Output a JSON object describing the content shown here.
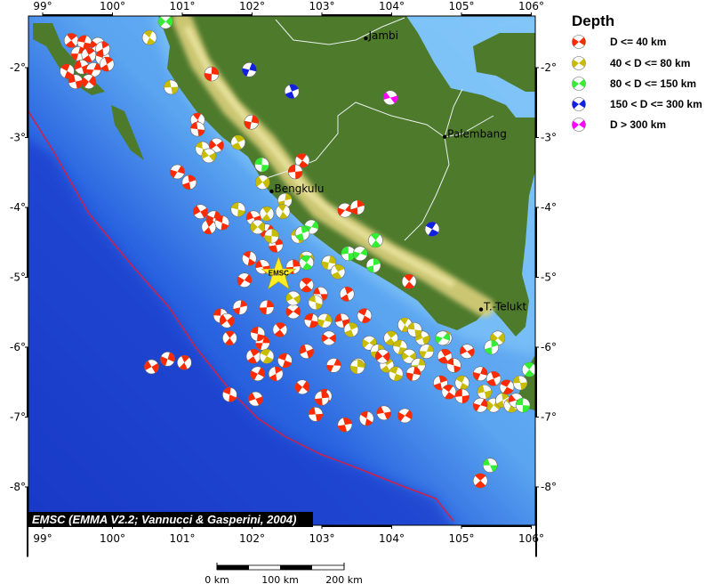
{
  "map": {
    "lon_ticks": [
      "99°",
      "100°",
      "101°",
      "102°",
      "103°",
      "104°",
      "105°",
      "106°"
    ],
    "lon_values": [
      99,
      100,
      101,
      102,
      103,
      104,
      105,
      106
    ],
    "lat_ticks": [
      "-2°",
      "-3°",
      "-4°",
      "-5°",
      "-6°",
      "-7°",
      "-8°"
    ],
    "lat_values": [
      -2,
      -3,
      -4,
      -5,
      -6,
      -7,
      -8
    ],
    "colors": {
      "ocean_shallow": "#6cb4f4",
      "ocean_deep": "#1438c8",
      "land": "#4e7a2c",
      "mountain": "#d9cf7a",
      "trench": "#d0204a",
      "river": "#e8f0f0"
    },
    "cities": [
      {
        "name": "Jambi",
        "lon": 103.63,
        "lat": -1.58
      },
      {
        "name": "Palembang",
        "lon": 104.76,
        "lat": -2.99
      },
      {
        "name": "Bengkulu",
        "lon": 102.28,
        "lat": -3.77
      },
      {
        "name": "T.-Telukt",
        "lon": 105.28,
        "lat": -5.46
      }
    ],
    "epicenter": {
      "label": "EMSC",
      "lon": 102.38,
      "lat": -4.96,
      "color": "#ffee22"
    },
    "attribution": "EMSC (EMMA V2.2; Vannucci & Gasperini, 2004)"
  },
  "legend": {
    "title": "Depth",
    "items": [
      {
        "label": "D <= 40 km",
        "color": "#ff2a00",
        "icon": "beachball-icon"
      },
      {
        "label": "40 < D <= 80 km",
        "color": "#c8bc00",
        "icon": "beachball-icon"
      },
      {
        "label": "80 < D <= 150 km",
        "color": "#33ee33",
        "icon": "beachball-icon"
      },
      {
        "label": "150 < D <= 300 km",
        "color": "#1020e0",
        "icon": "beachball-icon"
      },
      {
        "label": "D > 300 km",
        "color": "#ff00ff",
        "icon": "beachball-icon"
      }
    ]
  },
  "scale_bar": {
    "labels": [
      "0 km",
      "100 km",
      "200 km"
    ]
  },
  "events": [
    [
      99.41,
      -1.61,
      0
    ],
    [
      99.6,
      -1.64,
      0
    ],
    [
      99.79,
      -1.67,
      0
    ],
    [
      99.51,
      -1.8,
      0
    ],
    [
      99.66,
      -1.82,
      0
    ],
    [
      99.86,
      -1.86,
      0
    ],
    [
      99.56,
      -1.99,
      0
    ],
    [
      99.73,
      -2.03,
      0
    ],
    [
      99.92,
      -1.95,
      0
    ],
    [
      99.35,
      -2.05,
      0
    ],
    [
      99.47,
      -2.2,
      0
    ],
    [
      99.66,
      -2.2,
      0
    ],
    [
      99.86,
      -1.73,
      0
    ],
    [
      100.53,
      -1.57,
      1
    ],
    [
      100.84,
      -2.28,
      1
    ],
    [
      100.76,
      -1.34,
      2
    ],
    [
      101.42,
      -2.09,
      0
    ],
    [
      101.22,
      -2.75,
      0
    ],
    [
      101.22,
      -2.88,
      0
    ],
    [
      101.49,
      -3.11,
      0
    ],
    [
      101.99,
      -2.78,
      0
    ],
    [
      101.8,
      -3.07,
      1
    ],
    [
      101.29,
      -3.16,
      1
    ],
    [
      101.38,
      -3.26,
      1
    ],
    [
      101.96,
      -2.03,
      3
    ],
    [
      102.57,
      -2.34,
      3
    ],
    [
      104.58,
      -4.31,
      3
    ],
    [
      103.98,
      -2.43,
      4
    ],
    [
      100.93,
      -3.49,
      0
    ],
    [
      101.1,
      -3.64,
      0
    ],
    [
      102.72,
      -3.33,
      0
    ],
    [
      102.62,
      -3.49,
      0
    ],
    [
      103.33,
      -4.04,
      0
    ],
    [
      103.51,
      -4.0,
      0
    ],
    [
      104.25,
      -5.06,
      0
    ],
    [
      102.14,
      -3.39,
      2
    ],
    [
      102.15,
      -3.64,
      1
    ],
    [
      102.47,
      -3.9,
      1
    ],
    [
      102.21,
      -4.09,
      1
    ],
    [
      101.8,
      -4.03,
      1
    ],
    [
      101.26,
      -4.06,
      0
    ],
    [
      101.45,
      -4.15,
      0
    ],
    [
      101.38,
      -4.28,
      0
    ],
    [
      101.57,
      -4.22,
      0
    ],
    [
      102.02,
      -4.15,
      0
    ],
    [
      102.21,
      -4.34,
      0
    ],
    [
      102.34,
      -4.54,
      0
    ],
    [
      101.96,
      -4.73,
      0
    ],
    [
      102.15,
      -4.85,
      0
    ],
    [
      101.89,
      -5.04,
      0
    ],
    [
      102.59,
      -4.85,
      0
    ],
    [
      102.78,
      -5.11,
      0
    ],
    [
      102.98,
      -5.24,
      0
    ],
    [
      102.59,
      -5.49,
      0
    ],
    [
      102.21,
      -5.43,
      0
    ],
    [
      102.4,
      -5.75,
      0
    ],
    [
      102.85,
      -5.62,
      0
    ],
    [
      103.1,
      -5.87,
      0
    ],
    [
      102.15,
      -5.94,
      0
    ],
    [
      102.02,
      -6.13,
      0
    ],
    [
      102.47,
      -6.19,
      0
    ],
    [
      102.78,
      -6.06,
      0
    ],
    [
      103.17,
      -6.26,
      0
    ],
    [
      103.36,
      -5.24,
      0
    ],
    [
      103.61,
      -5.55,
      0
    ],
    [
      103.29,
      -5.62,
      0
    ],
    [
      102.72,
      -6.57,
      0
    ],
    [
      102.34,
      -6.38,
      0
    ],
    [
      103.04,
      -6.7,
      0
    ],
    [
      102.91,
      -6.96,
      0
    ],
    [
      102.08,
      -4.28,
      1
    ],
    [
      102.28,
      -4.41,
      1
    ],
    [
      102.44,
      -4.06,
      1
    ],
    [
      102.66,
      -4.41,
      1
    ],
    [
      102.78,
      -4.73,
      1
    ],
    [
      103.1,
      -4.79,
      1
    ],
    [
      103.23,
      -4.92,
      1
    ],
    [
      102.91,
      -5.36,
      1
    ],
    [
      102.59,
      -5.3,
      1
    ],
    [
      103.04,
      -5.62,
      1
    ],
    [
      103.42,
      -5.75,
      1
    ],
    [
      102.21,
      -6.13,
      1
    ],
    [
      103.52,
      -6.26,
      1
    ],
    [
      102.85,
      -4.28,
      2
    ],
    [
      102.72,
      -4.37,
      2
    ],
    [
      102.78,
      -4.79,
      2
    ],
    [
      103.38,
      -4.66,
      2
    ],
    [
      103.55,
      -4.66,
      2
    ],
    [
      103.74,
      -4.83,
      2
    ],
    [
      103.77,
      -4.47,
      2
    ],
    [
      101.55,
      -5.55,
      0
    ],
    [
      101.64,
      -5.62,
      0
    ],
    [
      101.83,
      -5.43,
      0
    ],
    [
      101.68,
      -5.87,
      0
    ],
    [
      102.08,
      -5.81,
      0
    ],
    [
      100.56,
      -6.28,
      0
    ],
    [
      100.79,
      -6.17,
      0
    ],
    [
      101.03,
      -6.22,
      0
    ],
    [
      101.68,
      -6.68,
      0
    ],
    [
      102.05,
      -6.74,
      0
    ],
    [
      102.08,
      -6.38,
      0
    ],
    [
      103.33,
      -7.11,
      0
    ],
    [
      103.64,
      -7.02,
      0
    ],
    [
      103.89,
      -6.94,
      0
    ],
    [
      104.19,
      -6.98,
      0
    ],
    [
      103.0,
      -6.73,
      0
    ],
    [
      105.27,
      -7.91,
      0
    ],
    [
      105.41,
      -7.69,
      2
    ],
    [
      103.68,
      -5.94,
      1
    ],
    [
      103.8,
      -6.06,
      1
    ],
    [
      103.99,
      -5.87,
      1
    ],
    [
      104.12,
      -6.0,
      1
    ],
    [
      104.25,
      -6.13,
      1
    ],
    [
      104.38,
      -6.26,
      1
    ],
    [
      103.93,
      -6.26,
      1
    ],
    [
      104.06,
      -6.38,
      1
    ],
    [
      104.44,
      -5.87,
      1
    ],
    [
      104.5,
      -6.06,
      1
    ],
    [
      104.76,
      -5.87,
      1
    ],
    [
      105.01,
      -6.51,
      1
    ],
    [
      105.33,
      -6.64,
      1
    ],
    [
      105.46,
      -6.83,
      1
    ],
    [
      105.59,
      -6.76,
      1
    ],
    [
      105.71,
      -6.83,
      1
    ],
    [
      105.84,
      -6.51,
      1
    ],
    [
      105.52,
      -5.87,
      1
    ],
    [
      103.51,
      -6.28,
      1
    ],
    [
      104.19,
      -5.68,
      1
    ],
    [
      104.33,
      -5.75,
      1
    ],
    [
      103.87,
      -6.13,
      0
    ],
    [
      104.31,
      -6.38,
      0
    ],
    [
      104.76,
      -6.13,
      0
    ],
    [
      104.89,
      -6.26,
      0
    ],
    [
      105.08,
      -6.06,
      0
    ],
    [
      105.27,
      -6.38,
      0
    ],
    [
      105.46,
      -6.45,
      0
    ],
    [
      105.65,
      -6.57,
      0
    ],
    [
      105.78,
      -6.76,
      0
    ],
    [
      105.27,
      -6.83,
      0
    ],
    [
      104.7,
      -6.51,
      0
    ],
    [
      104.82,
      -6.64,
      0
    ],
    [
      105.01,
      -6.7,
      0
    ],
    [
      104.73,
      -5.87,
      2
    ],
    [
      105.43,
      -6.0,
      2
    ],
    [
      105.97,
      -6.32,
      2
    ],
    [
      105.88,
      -6.83,
      2
    ]
  ]
}
